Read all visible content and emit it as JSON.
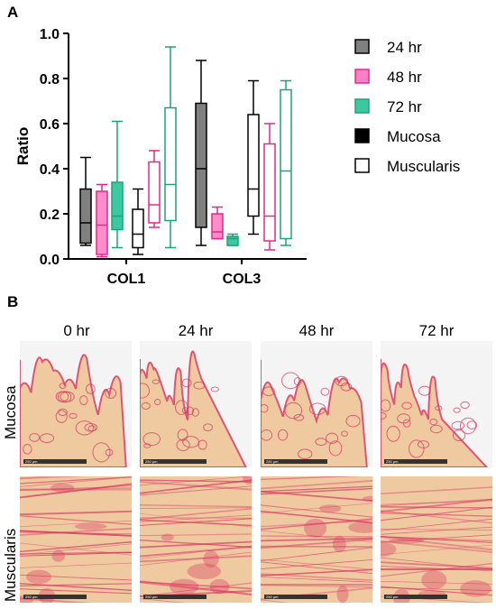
{
  "panel_a": {
    "letter": "A",
    "chart_data": {
      "type": "box",
      "ylabel": "Ratio",
      "ylim": [
        0,
        1.0
      ],
      "yticks": [
        "0.0",
        "0.2",
        "0.4",
        "0.6",
        "0.8",
        "1.0"
      ],
      "categories": [
        "COL1",
        "COL3"
      ],
      "grid": false,
      "legend_position": "right",
      "legend": [
        {
          "label": "24 hr",
          "color": "#808080",
          "style": "filled"
        },
        {
          "label": "48 hr",
          "color": "#ff7fc6",
          "style": "filled"
        },
        {
          "label": "72 hr",
          "color": "#3cc9a0",
          "style": "filled"
        },
        {
          "label": "Mucosa",
          "color": "#000000",
          "style": "filled"
        },
        {
          "label": "Muscularis",
          "color": "#000000",
          "style": "outline"
        }
      ],
      "boxes": [
        {
          "category": "COL1",
          "layer": "Mucosa",
          "time": "24 hr",
          "color": "#808080",
          "edge": "#000000",
          "filled": true,
          "min": 0.06,
          "q1": 0.07,
          "median": 0.16,
          "q3": 0.31,
          "max": 0.45
        },
        {
          "category": "COL1",
          "layer": "Mucosa",
          "time": "48 hr",
          "color": "#ff8ccb",
          "edge": "#e8258a",
          "filled": true,
          "min": 0.01,
          "q1": 0.02,
          "median": 0.15,
          "q3": 0.3,
          "max": 0.33
        },
        {
          "category": "COL1",
          "layer": "Mucosa",
          "time": "72 hr",
          "color": "#3cc9a0",
          "edge": "#1aa37a",
          "filled": true,
          "min": 0.05,
          "q1": 0.13,
          "median": 0.19,
          "q3": 0.34,
          "max": 0.61
        },
        {
          "category": "COL1",
          "layer": "Muscularis",
          "time": "24 hr",
          "color": "#ffffff",
          "edge": "#000000",
          "filled": false,
          "min": 0.02,
          "q1": 0.05,
          "median": 0.11,
          "q3": 0.22,
          "max": 0.31
        },
        {
          "category": "COL1",
          "layer": "Muscularis",
          "time": "48 hr",
          "color": "#ffffff",
          "edge": "#e8258a",
          "filled": false,
          "min": 0.14,
          "q1": 0.16,
          "median": 0.24,
          "q3": 0.43,
          "max": 0.48
        },
        {
          "category": "COL1",
          "layer": "Muscularis",
          "time": "72 hr",
          "color": "#ffffff",
          "edge": "#1aa37a",
          "filled": false,
          "min": 0.05,
          "q1": 0.17,
          "median": 0.33,
          "q3": 0.67,
          "max": 0.94
        },
        {
          "category": "COL3",
          "layer": "Mucosa",
          "time": "24 hr",
          "color": "#808080",
          "edge": "#000000",
          "filled": true,
          "min": 0.06,
          "q1": 0.14,
          "median": 0.4,
          "q3": 0.69,
          "max": 0.88
        },
        {
          "category": "COL3",
          "layer": "Mucosa",
          "time": "48 hr",
          "color": "#ff8ccb",
          "edge": "#e8258a",
          "filled": true,
          "min": 0.09,
          "q1": 0.09,
          "median": 0.12,
          "q3": 0.2,
          "max": 0.23
        },
        {
          "category": "COL3",
          "layer": "Mucosa",
          "time": "72 hr",
          "color": "#3cc9a0",
          "edge": "#1aa37a",
          "filled": true,
          "min": 0.06,
          "q1": 0.06,
          "median": 0.09,
          "q3": 0.1,
          "max": 0.11
        },
        {
          "category": "COL3",
          "layer": "Muscularis",
          "time": "24 hr",
          "color": "#ffffff",
          "edge": "#000000",
          "filled": false,
          "min": 0.11,
          "q1": 0.19,
          "median": 0.31,
          "q3": 0.64,
          "max": 0.79
        },
        {
          "category": "COL3",
          "layer": "Muscularis",
          "time": "48 hr",
          "color": "#ffffff",
          "edge": "#e8258a",
          "filled": false,
          "min": 0.04,
          "q1": 0.08,
          "median": 0.19,
          "q3": 0.51,
          "max": 0.6
        },
        {
          "category": "COL3",
          "layer": "Muscularis",
          "time": "72 hr",
          "color": "#ffffff",
          "edge": "#1aa37a",
          "filled": false,
          "min": 0.06,
          "q1": 0.09,
          "median": 0.39,
          "q3": 0.75,
          "max": 0.79
        }
      ]
    }
  },
  "panel_b": {
    "letter": "B",
    "columns": [
      "0 hr",
      "24 hr",
      "48 hr",
      "72 hr"
    ],
    "rows": [
      "Mucosa",
      "Muscularis"
    ],
    "scale_bar_label": "250 µm",
    "colors": {
      "stroma": "#efc9a0",
      "stain": "#d9335f",
      "background": "#f4f4f4",
      "scale_bar": "#333333"
    }
  }
}
